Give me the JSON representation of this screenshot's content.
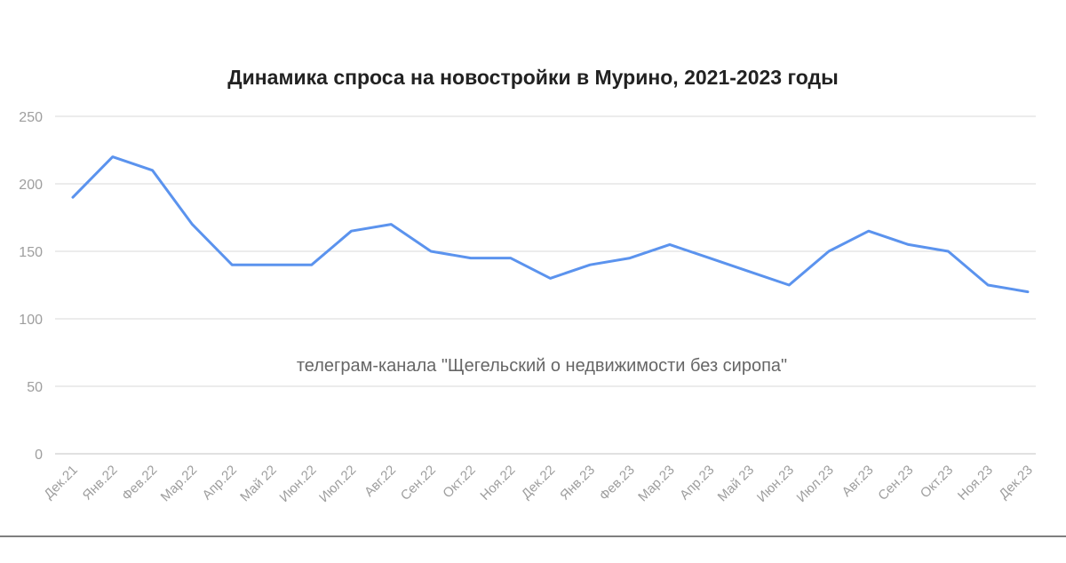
{
  "chart_data": {
    "type": "line",
    "title": "Динамика спроса на новостройки в Мурино, 2021-2023 годы",
    "annotation": "телеграм-канала \"Щегельский о недвижимости без сиропа\"",
    "xlabel": "",
    "ylabel": "",
    "ylim": [
      0,
      250
    ],
    "yticks": [
      0,
      50,
      100,
      150,
      200,
      250
    ],
    "grid": true,
    "legend": "none",
    "categories": [
      "Дек.21",
      "Янв.22",
      "Фев.22",
      "Мар.22",
      "Апр.22",
      "Май 22",
      "Июн.22",
      "Июл.22",
      "Авг.22",
      "Сен.22",
      "Окт.22",
      "Ноя.22",
      "Дек.22",
      "Янв.23",
      "Фев.23",
      "Мар.23",
      "Апр.23",
      "Май 23",
      "Июн.23",
      "Июл.23",
      "Авг.23",
      "Сен.23",
      "Окт.23",
      "Ноя.23",
      "Дек.23"
    ],
    "series": [
      {
        "color": "#5b93ee",
        "values": [
          190,
          220,
          210,
          170,
          140,
          140,
          140,
          165,
          170,
          150,
          145,
          145,
          130,
          140,
          145,
          155,
          145,
          135,
          125,
          150,
          165,
          155,
          150,
          125,
          120
        ]
      }
    ]
  }
}
